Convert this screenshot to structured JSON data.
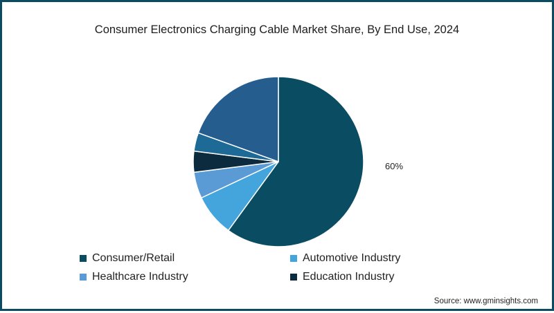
{
  "title": "Consumer Electronics Charging Cable Market Share, By End Use, 2024",
  "source": "Source: www.gminsights.com",
  "slice_label": "60%",
  "legend": [
    {
      "label": "Consumer/Retail",
      "color": "#0a4d63"
    },
    {
      "label": "Automotive Industry",
      "color": "#44a5dc"
    },
    {
      "label": "Healthcare Industry",
      "color": "#5b9bd5"
    },
    {
      "label": "Education Industry",
      "color": "#0c2b3e"
    }
  ],
  "chart_data": {
    "type": "pie",
    "title": "Consumer Electronics Charging Cable Market Share, By End Use, 2024",
    "categories": [
      "Consumer/Retail",
      "Automotive Industry",
      "Healthcare Industry",
      "Education Industry",
      "Other (unlabeled)",
      "Other (unlabeled)"
    ],
    "values": [
      60,
      8,
      5,
      4,
      3.5,
      19.5
    ],
    "colors": [
      "#0a4d63",
      "#44a5dc",
      "#5b9bd5",
      "#0c2b3e",
      "#1d6a96",
      "#265d8f"
    ],
    "data_labels": [
      "60%",
      "",
      "",
      "",
      "",
      ""
    ],
    "start_angle": "12 o'clock, clockwise",
    "legend_position": "bottom"
  }
}
